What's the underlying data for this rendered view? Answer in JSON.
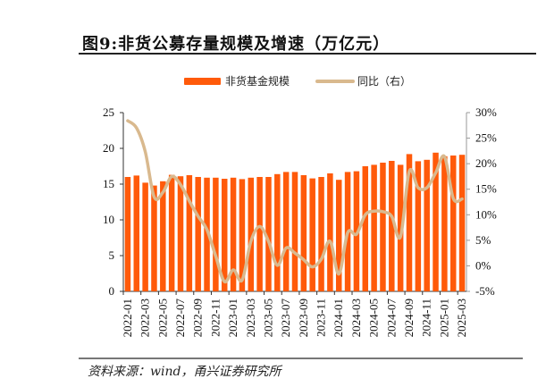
{
  "title": "图9:非货公募存量规模及增速（万亿元）",
  "source": "资料来源：wind，甬兴证券研究所",
  "chart_data": {
    "type": "bar+line",
    "title": "图9:非货公募存量规模及增速（万亿元）",
    "categories": [
      "2022-01",
      "2022-02",
      "2022-03",
      "2022-04",
      "2022-05",
      "2022-06",
      "2022-07",
      "2022-08",
      "2022-09",
      "2022-10",
      "2022-11",
      "2022-12",
      "2023-01",
      "2023-02",
      "2023-03",
      "2023-04",
      "2023-05",
      "2023-06",
      "2023-07",
      "2023-08",
      "2023-09",
      "2023-10",
      "2023-11",
      "2023-12",
      "2024-01",
      "2024-02",
      "2024-03",
      "2024-04",
      "2024-05",
      "2024-06",
      "2024-07",
      "2024-08",
      "2024-09",
      "2024-10",
      "2024-11",
      "2024-12",
      "2025-01",
      "2025-02",
      "2025-03"
    ],
    "x_tick_labels": [
      "2022-01",
      "2022-03",
      "2022-05",
      "2022-07",
      "2022-09",
      "2022-11",
      "2023-01",
      "2023-03",
      "2023-05",
      "2023-07",
      "2023-09",
      "2023-11",
      "2024-01",
      "2024-03",
      "2024-05",
      "2024-07",
      "2024-09",
      "2024-11",
      "2025-01",
      "2025-03"
    ],
    "series": [
      {
        "name": "非货基金规模",
        "type": "bar",
        "axis": "left",
        "color": "#FF5A0A",
        "values": [
          16.0,
          16.2,
          15.2,
          14.8,
          15.4,
          16.3,
          16.1,
          16.25,
          16.0,
          15.9,
          15.9,
          15.75,
          15.9,
          15.7,
          15.9,
          16.0,
          16.0,
          16.4,
          16.7,
          16.7,
          16.25,
          15.8,
          16.0,
          16.5,
          15.6,
          16.7,
          16.8,
          17.5,
          17.7,
          18.0,
          18.25,
          17.7,
          19.2,
          18.2,
          18.4,
          19.4,
          18.9,
          19.0,
          19.1
        ]
      },
      {
        "name": "同比（右）",
        "type": "line",
        "axis": "right",
        "color": "#D9B98E",
        "values": [
          28.4,
          27.0,
          22.3,
          13.5,
          14.4,
          17.5,
          15.9,
          12.7,
          9.7,
          7.1,
          1.9,
          -3.1,
          -0.8,
          -2.8,
          4.8,
          7.7,
          4.8,
          0.1,
          3.5,
          2.5,
          1.2,
          -0.2,
          1.3,
          4.8,
          -1.6,
          6.5,
          6.2,
          10.0,
          10.7,
          10.6,
          9.7,
          5.7,
          18.5,
          15.3,
          15.3,
          18.2,
          21.4,
          13.2,
          13.1
        ]
      }
    ],
    "y_left": {
      "range": [
        0,
        25
      ],
      "ticks": [
        "0",
        "5",
        "10",
        "15",
        "20",
        "25"
      ]
    },
    "y_right": {
      "range": [
        -5,
        30
      ],
      "unit": "%",
      "ticks": [
        "-5%",
        "0%",
        "5%",
        "10%",
        "15%",
        "20%",
        "25%",
        "30%"
      ]
    },
    "grid": false,
    "legend": "top"
  }
}
